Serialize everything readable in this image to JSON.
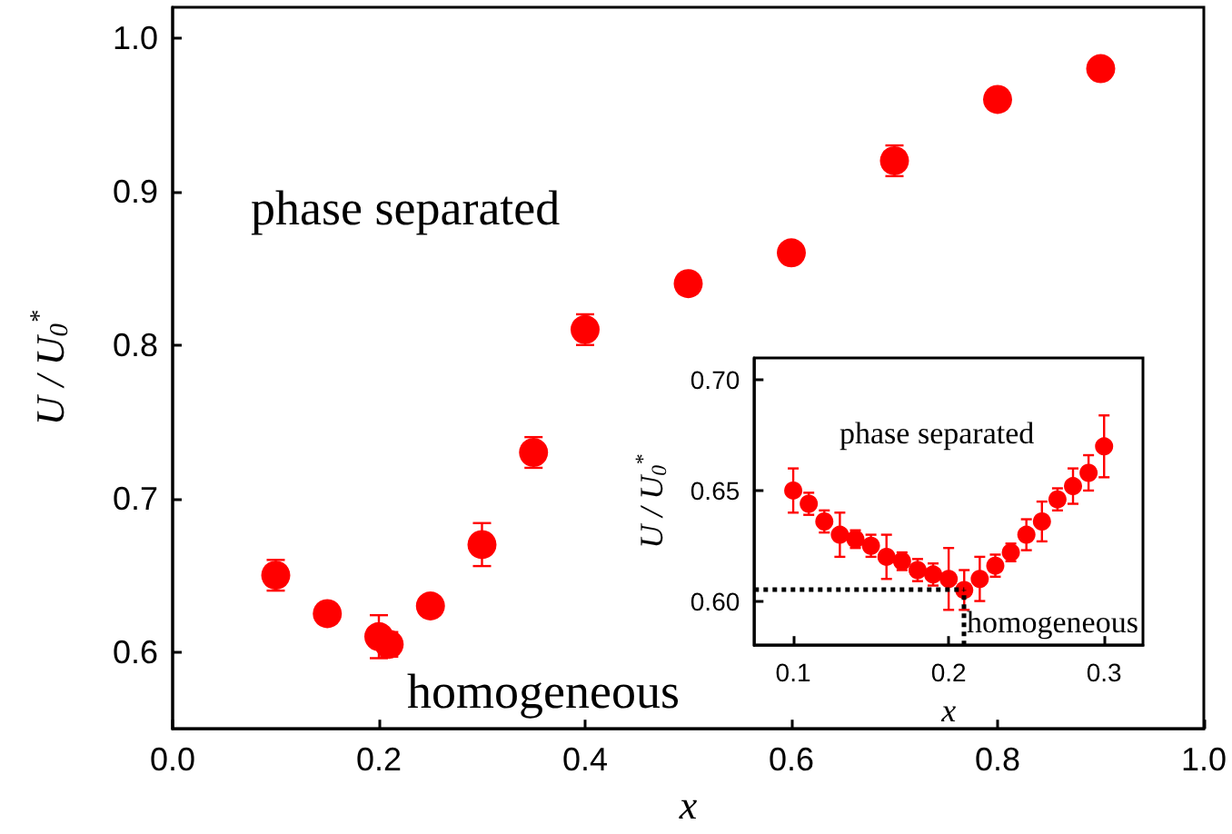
{
  "chart_data": [
    {
      "type": "scatter",
      "xlabel": "x",
      "ylabel": "U / U$_{0}$$^{*}$",
      "xlim": [
        0,
        1
      ],
      "ylim": [
        0.55,
        1.02
      ],
      "xticks": [
        {
          "value": 0,
          "label": "0.0"
        },
        0.2,
        0.4,
        0.6,
        0.8,
        {
          "value": 1,
          "label": "1.0"
        }
      ],
      "yticks": [
        0.6,
        0.7,
        0.8,
        0.9,
        {
          "value": 1,
          "label": "1.0"
        }
      ],
      "x": [
        0.1,
        0.15,
        0.2,
        0.21,
        0.25,
        0.3,
        0.35,
        0.4,
        0.5,
        0.6,
        0.7,
        0.8,
        0.9
      ],
      "series": [
        {
          "color": "#ff0000",
          "values": [
            0.65,
            0.625,
            0.61,
            0.605,
            0.63,
            0.67,
            0.73,
            0.81,
            0.84,
            0.86,
            0.92,
            0.96,
            0.98
          ],
          "errors": [
            0.01,
            null,
            0.014,
            0.008,
            null,
            0.014,
            0.01,
            0.01,
            null,
            null,
            0.01,
            null,
            null
          ]
        }
      ],
      "marker": "circle",
      "grid": false,
      "annotations": [
        "phase separated",
        "homogeneous"
      ]
    },
    {
      "type": "scatter",
      "xlabel": "x",
      "ylabel": "U / U$_{0}$$^{*}$",
      "xlim": [
        0.075,
        0.325
      ],
      "ylim": [
        0.58,
        0.71
      ],
      "xticks": [
        0.1,
        0.2,
        0.3
      ],
      "yticks": [
        {
          "value": 0.6,
          "label": "0.60"
        },
        0.65,
        {
          "value": 0.7,
          "label": "0.70"
        }
      ],
      "x": [
        0.1,
        0.11,
        0.12,
        0.13,
        0.14,
        0.15,
        0.16,
        0.17,
        0.18,
        0.19,
        0.2,
        0.21,
        0.22,
        0.23,
        0.24,
        0.25,
        0.26,
        0.27,
        0.28,
        0.29,
        0.3
      ],
      "series": [
        {
          "color": "#ff0000",
          "values": [
            0.65,
            0.644,
            0.636,
            0.63,
            0.628,
            0.625,
            0.62,
            0.618,
            0.614,
            0.612,
            0.61,
            0.605,
            0.61,
            0.616,
            0.622,
            0.63,
            0.636,
            0.646,
            0.652,
            0.658,
            0.67
          ],
          "errors": [
            0.01,
            0.005,
            0.005,
            0.01,
            0.004,
            0.005,
            0.01,
            0.004,
            0.005,
            0.005,
            0.014,
            0.009,
            0.01,
            0.005,
            0.004,
            0.007,
            0.009,
            0.005,
            0.008,
            0.008,
            0.014
          ]
        }
      ],
      "marker": "circle",
      "grid": false,
      "ref_lines": [
        {
          "axis": "y",
          "value": 0.605,
          "line_style": "dotted",
          "color": "#000000"
        },
        {
          "axis": "x",
          "value": 0.21,
          "line_style": "dotted",
          "color": "#000000"
        }
      ],
      "annotations": [
        "phase separated",
        "homogeneous"
      ]
    }
  ]
}
